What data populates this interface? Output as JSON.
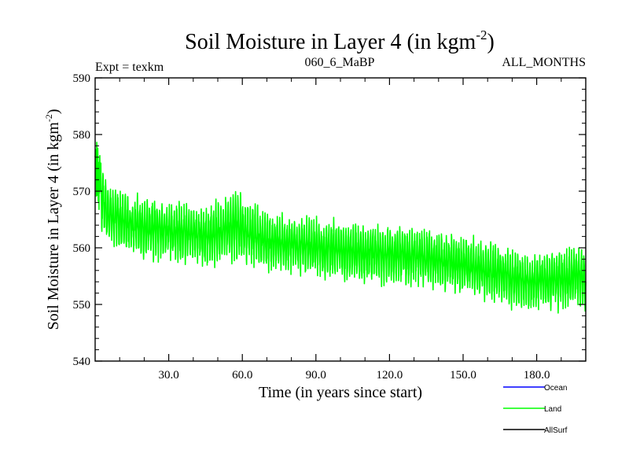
{
  "chart_data": {
    "type": "line",
    "title_main": "Soil Moisture in Layer 4 (in kgm",
    "title_sup": "-2",
    "title_close": ")",
    "expt_label": "Expt = texkm",
    "subtitle_center": "060_6_MaBP",
    "subtitle_right": "ALL_MONTHS",
    "xlabel": "Time (in years since start)",
    "ylabel_main": "Soil Moisture in Layer 4 (in kgm",
    "ylabel_sup": "-2",
    "ylabel_close": ")",
    "xlim": [
      0,
      200
    ],
    "ylim": [
      540,
      590
    ],
    "xticks": [
      30,
      60,
      90,
      120,
      150,
      180
    ],
    "xtick_labels": [
      "30.0",
      "60.0",
      "90.0",
      "120.0",
      "150.0",
      "180.0"
    ],
    "yticks": [
      540,
      550,
      560,
      570,
      580,
      590
    ],
    "ytick_labels": [
      "540",
      "550",
      "560",
      "570",
      "580",
      "590"
    ],
    "series_color": "#00ff00",
    "series_trend": [
      {
        "x": 0,
        "center": 572,
        "amp": 9
      },
      {
        "x": 5,
        "center": 566,
        "amp": 5
      },
      {
        "x": 15,
        "center": 564,
        "amp": 5
      },
      {
        "x": 30,
        "center": 563,
        "amp": 5
      },
      {
        "x": 45,
        "center": 562,
        "amp": 5
      },
      {
        "x": 57,
        "center": 564,
        "amp": 6
      },
      {
        "x": 70,
        "center": 561,
        "amp": 5
      },
      {
        "x": 90,
        "center": 560,
        "amp": 5
      },
      {
        "x": 110,
        "center": 559,
        "amp": 5
      },
      {
        "x": 130,
        "center": 558.5,
        "amp": 5
      },
      {
        "x": 150,
        "center": 557,
        "amp": 5
      },
      {
        "x": 165,
        "center": 555.5,
        "amp": 5
      },
      {
        "x": 175,
        "center": 554,
        "amp": 5
      },
      {
        "x": 190,
        "center": 554.5,
        "amp": 5
      },
      {
        "x": 200,
        "center": 555,
        "amp": 6
      }
    ],
    "legend": [
      {
        "label": "Ocean",
        "color": "#0000ff"
      },
      {
        "label": "Land",
        "color": "#00ff00"
      },
      {
        "label": "AllSurf",
        "color": "#000000"
      }
    ]
  }
}
